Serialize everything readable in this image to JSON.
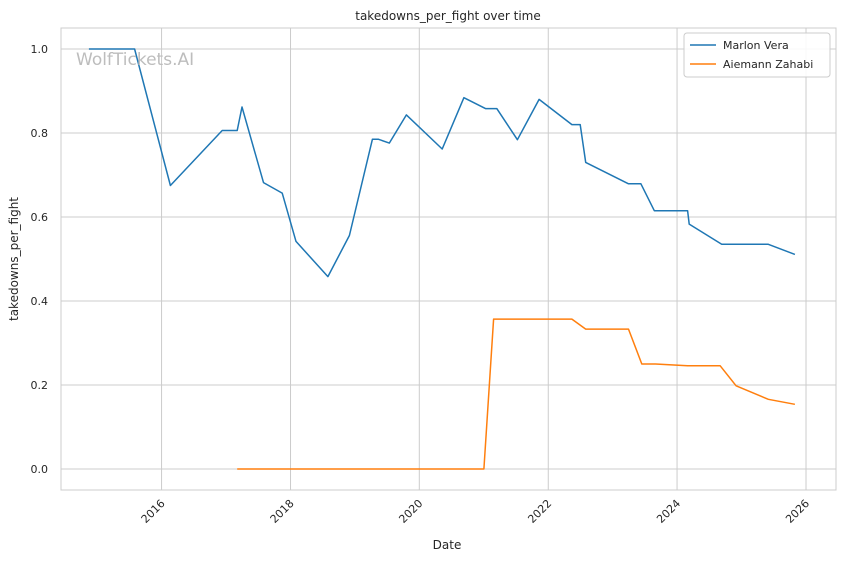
{
  "chart_data": {
    "type": "line",
    "title": "takedowns_per_fight over time",
    "xlabel": "Date",
    "ylabel": "takedowns_per_fight",
    "watermark": "WolfTickets.AI",
    "xlim": [
      "2014-06-10",
      "2026-06-20"
    ],
    "ylim": [
      -0.05,
      1.05
    ],
    "x_ticks": [
      {
        "date": "2016-01-01",
        "label": "2016"
      },
      {
        "date": "2018-01-01",
        "label": "2018"
      },
      {
        "date": "2020-01-01",
        "label": "2020"
      },
      {
        "date": "2022-01-01",
        "label": "2022"
      },
      {
        "date": "2024-01-01",
        "label": "2024"
      },
      {
        "date": "2026-01-01",
        "label": "2026"
      }
    ],
    "y_ticks": [
      {
        "value": 0.0,
        "label": "0.0"
      },
      {
        "value": 0.2,
        "label": "0.2"
      },
      {
        "value": 0.4,
        "label": "0.4"
      },
      {
        "value": 0.6,
        "label": "0.6"
      },
      {
        "value": 0.8,
        "label": "0.8"
      },
      {
        "value": 1.0,
        "label": "1.0"
      }
    ],
    "grid": true,
    "legend": "top-right",
    "series": [
      {
        "name": "Marlon Vera",
        "color": "#1f77b4",
        "points": [
          {
            "x": "2014-11-15",
            "y": 1.0
          },
          {
            "x": "2015-08-01",
            "y": 1.0
          },
          {
            "x": "2016-02-20",
            "y": 0.675
          },
          {
            "x": "2016-12-10",
            "y": 0.806
          },
          {
            "x": "2017-03-05",
            "y": 0.806
          },
          {
            "x": "2017-04-01",
            "y": 0.862
          },
          {
            "x": "2017-08-01",
            "y": 0.682
          },
          {
            "x": "2017-11-15",
            "y": 0.657
          },
          {
            "x": "2018-02-01",
            "y": 0.542
          },
          {
            "x": "2018-08-01",
            "y": 0.458
          },
          {
            "x": "2018-12-01",
            "y": 0.556
          },
          {
            "x": "2019-04-10",
            "y": 0.785
          },
          {
            "x": "2019-05-15",
            "y": 0.785
          },
          {
            "x": "2019-07-15",
            "y": 0.776
          },
          {
            "x": "2019-10-20",
            "y": 0.843
          },
          {
            "x": "2020-05-10",
            "y": 0.762
          },
          {
            "x": "2020-09-10",
            "y": 0.884
          },
          {
            "x": "2021-01-10",
            "y": 0.858
          },
          {
            "x": "2021-03-15",
            "y": 0.858
          },
          {
            "x": "2021-07-10",
            "y": 0.784
          },
          {
            "x": "2021-11-10",
            "y": 0.88
          },
          {
            "x": "2022-05-15",
            "y": 0.82
          },
          {
            "x": "2022-07-01",
            "y": 0.82
          },
          {
            "x": "2022-08-01",
            "y": 0.73
          },
          {
            "x": "2023-04-01",
            "y": 0.679
          },
          {
            "x": "2023-06-10",
            "y": 0.679
          },
          {
            "x": "2023-08-25",
            "y": 0.615
          },
          {
            "x": "2024-03-01",
            "y": 0.615
          },
          {
            "x": "2024-03-10",
            "y": 0.583
          },
          {
            "x": "2024-09-10",
            "y": 0.535
          },
          {
            "x": "2025-06-01",
            "y": 0.535
          },
          {
            "x": "2025-10-30",
            "y": 0.511
          }
        ]
      },
      {
        "name": "Aiemann Zahabi",
        "color": "#ff7f0e",
        "points": [
          {
            "x": "2017-03-05",
            "y": 0.0
          },
          {
            "x": "2021-01-01",
            "y": 0.0
          },
          {
            "x": "2021-02-25",
            "y": 0.357
          },
          {
            "x": "2022-05-15",
            "y": 0.357
          },
          {
            "x": "2022-08-01",
            "y": 0.333
          },
          {
            "x": "2023-04-01",
            "y": 0.333
          },
          {
            "x": "2023-06-15",
            "y": 0.25
          },
          {
            "x": "2023-09-01",
            "y": 0.25
          },
          {
            "x": "2024-03-01",
            "y": 0.246
          },
          {
            "x": "2024-09-01",
            "y": 0.246
          },
          {
            "x": "2024-12-01",
            "y": 0.198
          },
          {
            "x": "2025-06-01",
            "y": 0.166
          },
          {
            "x": "2025-10-30",
            "y": 0.154
          }
        ]
      }
    ]
  }
}
